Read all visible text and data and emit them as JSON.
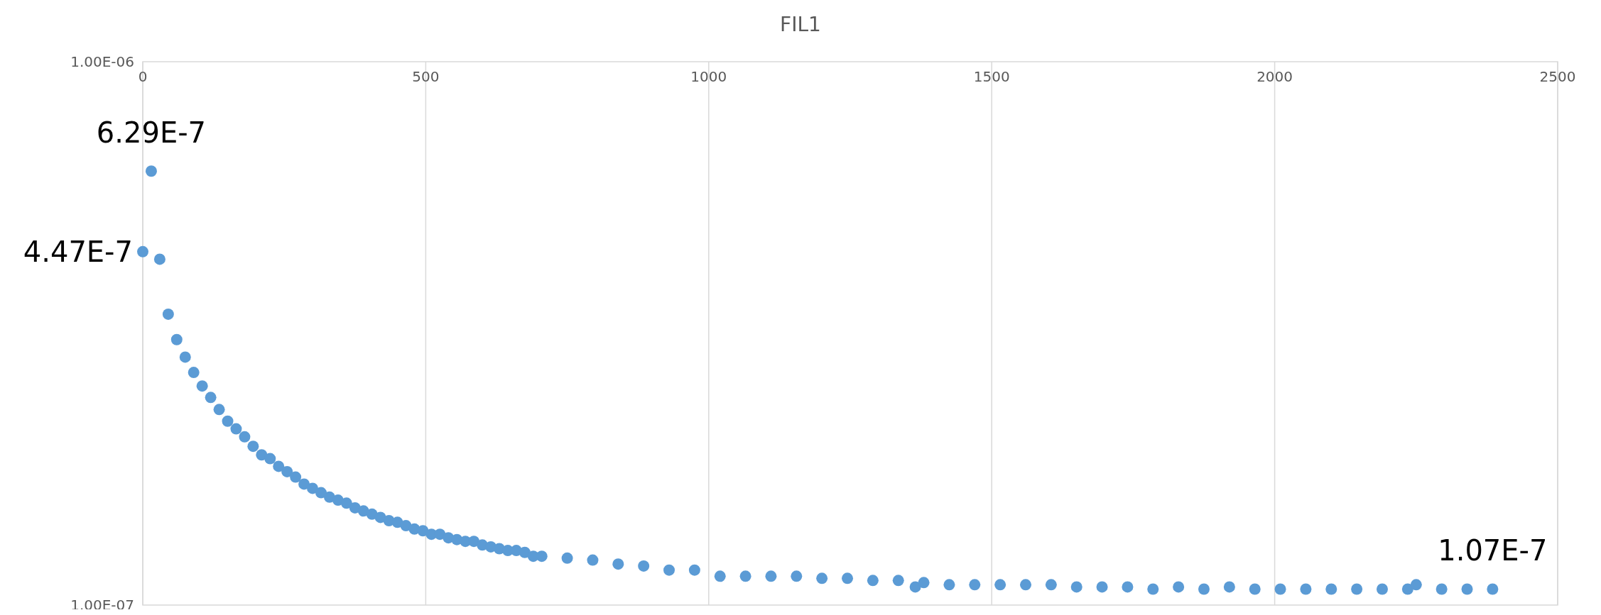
{
  "chart_data": {
    "type": "scatter",
    "title": "FIL1",
    "log": "y",
    "grid": "x",
    "marker": "circle",
    "xlim": [
      0,
      2500
    ],
    "xticks": [
      0,
      500,
      1000,
      1500,
      2000,
      2500
    ],
    "ylim": [
      1e-07,
      1e-06
    ],
    "yticks": [
      {
        "value": 1e-06,
        "label": "1.00E-06"
      },
      {
        "value": 1e-07,
        "label": "1.00E-07"
      }
    ],
    "series": [
      {
        "color": "#5b9bd5",
        "x": [
          0,
          15,
          30,
          45,
          60,
          75,
          90,
          105,
          120,
          135,
          150,
          165,
          180,
          195,
          210,
          225,
          240,
          255,
          270,
          285,
          300,
          315,
          330,
          345,
          360,
          375,
          390,
          405,
          420,
          435,
          450,
          465,
          480,
          495,
          510,
          525,
          540,
          555,
          570,
          585,
          600,
          615,
          630,
          645,
          660,
          675,
          690,
          705,
          750,
          795,
          840,
          885,
          930,
          975,
          1020,
          1065,
          1110,
          1155,
          1200,
          1245,
          1290,
          1335,
          1365,
          1380,
          1425,
          1470,
          1515,
          1560,
          1605,
          1650,
          1695,
          1740,
          1785,
          1830,
          1875,
          1920,
          1965,
          2010,
          2055,
          2100,
          2145,
          2190,
          2235,
          2250,
          2295,
          2340,
          2385
        ],
        "values": [
          4.47e-07,
          6.29e-07,
          4.33e-07,
          3.43e-07,
          3.08e-07,
          2.86e-07,
          2.68e-07,
          2.53e-07,
          2.41e-07,
          2.29e-07,
          2.18e-07,
          2.11e-07,
          2.04e-07,
          1.96e-07,
          1.89e-07,
          1.86e-07,
          1.8e-07,
          1.76e-07,
          1.72e-07,
          1.67e-07,
          1.64e-07,
          1.61e-07,
          1.58e-07,
          1.56e-07,
          1.54e-07,
          1.51e-07,
          1.49e-07,
          1.47e-07,
          1.45e-07,
          1.43e-07,
          1.42e-07,
          1.4e-07,
          1.38e-07,
          1.37e-07,
          1.35e-07,
          1.35e-07,
          1.33e-07,
          1.32e-07,
          1.31e-07,
          1.31e-07,
          1.29e-07,
          1.28e-07,
          1.27e-07,
          1.26e-07,
          1.26e-07,
          1.25e-07,
          1.23e-07,
          1.23e-07,
          1.22e-07,
          1.21e-07,
          1.19e-07,
          1.18e-07,
          1.16e-07,
          1.16e-07,
          1.13e-07,
          1.13e-07,
          1.13e-07,
          1.13e-07,
          1.12e-07,
          1.12e-07,
          1.11e-07,
          1.11e-07,
          1.08e-07,
          1.1e-07,
          1.09e-07,
          1.09e-07,
          1.09e-07,
          1.09e-07,
          1.09e-07,
          1.08e-07,
          1.08e-07,
          1.08e-07,
          1.07e-07,
          1.08e-07,
          1.07e-07,
          1.08e-07,
          1.07e-07,
          1.07e-07,
          1.07e-07,
          1.07e-07,
          1.07e-07,
          1.07e-07,
          1.07e-07,
          1.09e-07,
          1.07e-07,
          1.07e-07,
          1.07e-07
        ],
        "value_labels": [
          "4.47E-7",
          "6.29E-7",
          null,
          null,
          null,
          null,
          null,
          null,
          null,
          null,
          null,
          null,
          null,
          null,
          null,
          null,
          null,
          null,
          null,
          null,
          null,
          null,
          null,
          null,
          null,
          null,
          null,
          null,
          null,
          null,
          null,
          null,
          null,
          null,
          null,
          null,
          null,
          null,
          null,
          null,
          null,
          null,
          null,
          null,
          null,
          null,
          null,
          null,
          null,
          null,
          null,
          null,
          null,
          null,
          null,
          null,
          null,
          null,
          null,
          null,
          null,
          null,
          null,
          null,
          null,
          null,
          null,
          null,
          null,
          null,
          null,
          null,
          null,
          null,
          null,
          null,
          null,
          null,
          null,
          null,
          null,
          null,
          null,
          null,
          null,
          null,
          "1.07E-7"
        ]
      }
    ]
  }
}
